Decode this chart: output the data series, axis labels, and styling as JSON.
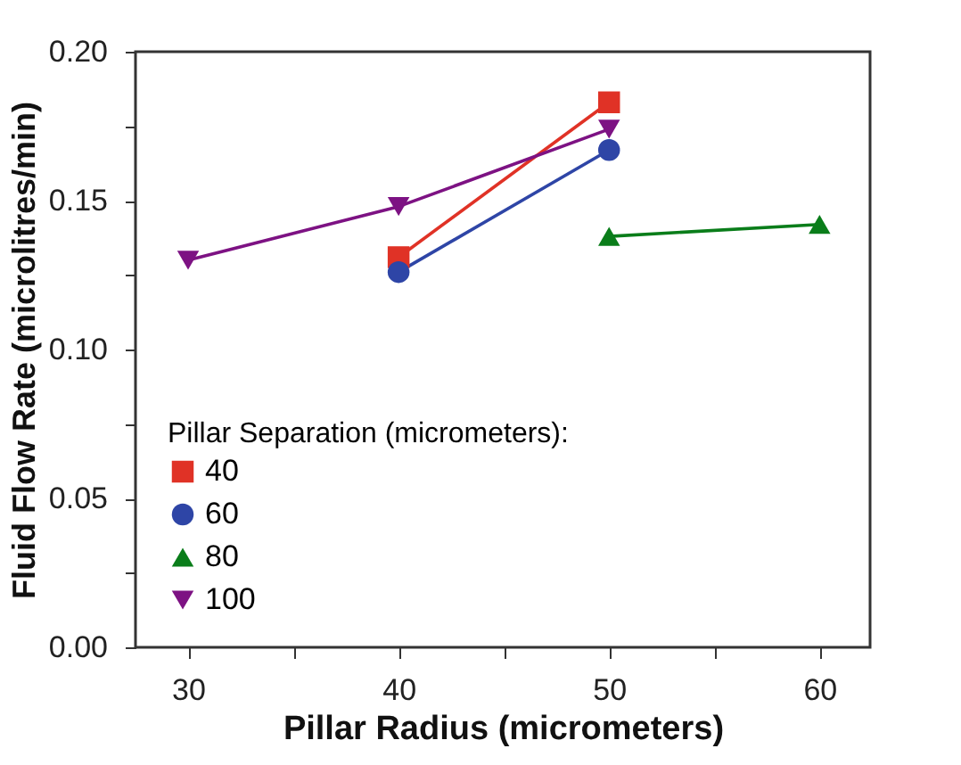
{
  "chart_data": {
    "type": "line",
    "xlabel": "Pillar Radius (micrometers)",
    "ylabel": "Fluid Flow Rate (microlitres/min)",
    "legend_title": "Pillar Separation (micrometers):",
    "legend": "bottom left",
    "grid": false,
    "line_style": "solid",
    "xlim": [
      27.5,
      62.4
    ],
    "ylim": [
      0,
      0.2
    ],
    "xticks": [
      30,
      {
        "value": 35,
        "label": null
      },
      40,
      {
        "value": 45,
        "label": null
      },
      50,
      {
        "value": 55,
        "label": null
      },
      60
    ],
    "yticks": [
      {
        "value": 0,
        "label": "0.00"
      },
      {
        "value": 0.025,
        "label": null
      },
      {
        "value": 0.05,
        "label": "0.05"
      },
      {
        "value": 0.075,
        "label": null
      },
      {
        "value": 0.1,
        "label": "0.10"
      },
      {
        "value": 0.125,
        "label": null
      },
      {
        "value": 0.15,
        "label": "0.15"
      },
      {
        "value": 0.175,
        "label": null
      },
      {
        "value": 0.2,
        "label": "0.20"
      }
    ],
    "series": [
      {
        "name": "40",
        "color": "#e03226",
        "marker": "square",
        "x": [
          40,
          50
        ],
        "values": [
          0.131,
          0.183
        ]
      },
      {
        "name": "60",
        "color": "#2e45a6",
        "marker": "circle",
        "x": [
          40,
          50
        ],
        "values": [
          0.126,
          0.167
        ]
      },
      {
        "name": "80",
        "color": "#0a7d1a",
        "marker": "triangle",
        "x": [
          50,
          60
        ],
        "values": [
          0.138,
          0.142
        ]
      },
      {
        "name": "100",
        "color": "#7d1283",
        "marker": "triangle-down",
        "x": [
          30,
          40,
          50
        ],
        "values": [
          0.13,
          0.148,
          0.174
        ]
      }
    ]
  }
}
